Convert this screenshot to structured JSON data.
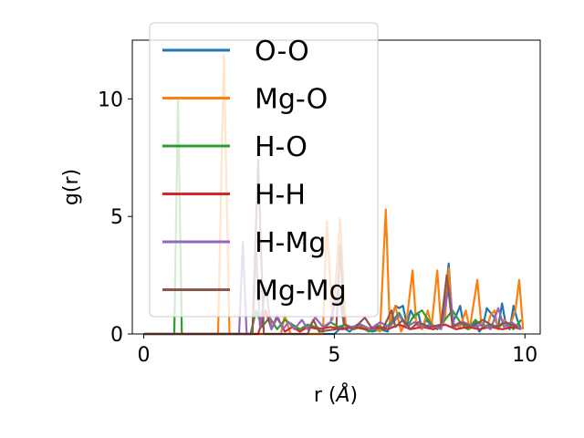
{
  "chart_data": {
    "type": "line",
    "xlabel": "r (",
    "xlabel_unit": "Å",
    "xlabel_close": ")",
    "ylabel": "g(r)",
    "xlim": [
      -0.3,
      10.4
    ],
    "ylim": [
      0,
      12.5
    ],
    "x_ticks": [
      {
        "value": 0,
        "label": "0"
      },
      {
        "value": 5,
        "label": "5"
      },
      {
        "value": 10,
        "label": "10"
      }
    ],
    "y_ticks": [
      {
        "value": 0,
        "label": "0"
      },
      {
        "value": 5,
        "label": "5"
      },
      {
        "value": 10,
        "label": "10"
      }
    ],
    "grid": false,
    "legend_position": "upper-left",
    "series": [
      {
        "name": "O-O",
        "color": "#1f77b4",
        "points": [
          [
            0,
            0
          ],
          [
            5.0,
            0
          ],
          [
            5.2,
            0.3
          ],
          [
            5.4,
            0.1
          ],
          [
            5.6,
            0.4
          ],
          [
            5.8,
            0.2
          ],
          [
            6.0,
            0.1
          ],
          [
            6.2,
            0.2
          ],
          [
            6.4,
            0.1
          ],
          [
            6.6,
            1.2
          ],
          [
            6.7,
            1.1
          ],
          [
            6.8,
            1.2
          ],
          [
            6.9,
            0.4
          ],
          [
            7.0,
            1.0
          ],
          [
            7.1,
            0.7
          ],
          [
            7.2,
            0.9
          ],
          [
            7.3,
            0.2
          ],
          [
            7.4,
            0.6
          ],
          [
            7.6,
            0.3
          ],
          [
            7.8,
            0.4
          ],
          [
            7.9,
            1.4
          ],
          [
            8.0,
            3.0
          ],
          [
            8.1,
            0.5
          ],
          [
            8.2,
            0.8
          ],
          [
            8.3,
            1.2
          ],
          [
            8.4,
            0.3
          ],
          [
            8.5,
            0.2
          ],
          [
            8.6,
            0.3
          ],
          [
            8.7,
            0.5
          ],
          [
            8.8,
            0.1
          ],
          [
            8.9,
            0.3
          ],
          [
            9.0,
            1.1
          ],
          [
            9.1,
            0.9
          ],
          [
            9.2,
            0.7
          ],
          [
            9.3,
            0.3
          ],
          [
            9.4,
            1.3
          ],
          [
            9.5,
            0.4
          ],
          [
            9.6,
            0.2
          ],
          [
            9.7,
            1.2
          ],
          [
            9.8,
            0.6
          ],
          [
            9.9,
            0.2
          ]
        ]
      },
      {
        "name": "Mg-O",
        "color": "#ff7f0e",
        "points": [
          [
            0,
            0
          ],
          [
            1.95,
            0
          ],
          [
            2.1,
            11.9
          ],
          [
            2.25,
            0
          ],
          [
            3.6,
            0
          ],
          [
            3.7,
            0.8
          ],
          [
            3.85,
            0
          ],
          [
            4.7,
            0
          ],
          [
            4.8,
            4.8
          ],
          [
            4.95,
            0.6
          ],
          [
            5.05,
            2.5
          ],
          [
            5.15,
            4.9
          ],
          [
            5.3,
            0.3
          ],
          [
            5.5,
            0.2
          ],
          [
            5.7,
            0.4
          ],
          [
            5.9,
            0.2
          ],
          [
            6.0,
            0.3
          ],
          [
            6.2,
            0.1
          ],
          [
            6.35,
            5.3
          ],
          [
            6.45,
            0.5
          ],
          [
            6.6,
            1.2
          ],
          [
            6.75,
            0.1
          ],
          [
            6.9,
            0.6
          ],
          [
            7.05,
            2.7
          ],
          [
            7.15,
            0.4
          ],
          [
            7.3,
            0.2
          ],
          [
            7.45,
            1.0
          ],
          [
            7.55,
            0.3
          ],
          [
            7.7,
            2.7
          ],
          [
            7.8,
            0.3
          ],
          [
            7.9,
            0.6
          ],
          [
            8.0,
            2.8
          ],
          [
            8.1,
            0.4
          ],
          [
            8.3,
            0.3
          ],
          [
            8.45,
            1.0
          ],
          [
            8.55,
            0.2
          ],
          [
            8.75,
            2.3
          ],
          [
            8.85,
            0.5
          ],
          [
            9.0,
            0.3
          ],
          [
            9.1,
            0.8
          ],
          [
            9.2,
            1.0
          ],
          [
            9.3,
            0.2
          ],
          [
            9.45,
            0.6
          ],
          [
            9.6,
            0.3
          ],
          [
            9.75,
            1.0
          ],
          [
            9.85,
            2.3
          ],
          [
            9.95,
            0.2
          ]
        ]
      },
      {
        "name": "H-O",
        "color": "#2ca02c",
        "points": [
          [
            0,
            0
          ],
          [
            0.8,
            0
          ],
          [
            0.9,
            10.0
          ],
          [
            1.0,
            0
          ],
          [
            2.8,
            0
          ],
          [
            2.95,
            1.0
          ],
          [
            3.1,
            0.3
          ],
          [
            3.3,
            0.7
          ],
          [
            3.5,
            0.2
          ],
          [
            3.7,
            0.6
          ],
          [
            3.9,
            0.4
          ],
          [
            4.1,
            0.2
          ],
          [
            4.3,
            0.4
          ],
          [
            4.5,
            0.3
          ],
          [
            4.7,
            0.2
          ],
          [
            4.9,
            0.5
          ],
          [
            5.1,
            0.3
          ],
          [
            5.3,
            0.4
          ],
          [
            5.5,
            0.2
          ],
          [
            5.7,
            0.3
          ],
          [
            5.9,
            0.1
          ],
          [
            6.1,
            0.4
          ],
          [
            6.3,
            0.2
          ],
          [
            6.5,
            0.5
          ],
          [
            6.7,
            0.9
          ],
          [
            6.9,
            0.3
          ],
          [
            7.1,
            0.8
          ],
          [
            7.3,
            1.0
          ],
          [
            7.5,
            0.5
          ],
          [
            7.7,
            0.2
          ],
          [
            7.9,
            0.6
          ],
          [
            8.1,
            1.0
          ],
          [
            8.3,
            0.5
          ],
          [
            8.5,
            0.2
          ],
          [
            8.7,
            0.6
          ],
          [
            8.9,
            0.3
          ],
          [
            9.1,
            0.4
          ],
          [
            9.3,
            0.3
          ],
          [
            9.5,
            0.5
          ],
          [
            9.7,
            0.2
          ],
          [
            9.9,
            0.6
          ]
        ]
      },
      {
        "name": "H-H",
        "color": "#d62728",
        "points": [
          [
            0,
            0
          ],
          [
            3.0,
            0
          ],
          [
            3.2,
            1.0
          ],
          [
            3.35,
            0.2
          ],
          [
            3.5,
            0.7
          ],
          [
            3.7,
            0.1
          ],
          [
            3.9,
            0.3
          ],
          [
            4.1,
            0.1
          ],
          [
            4.3,
            0.3
          ],
          [
            4.6,
            0.2
          ],
          [
            4.9,
            0.3
          ],
          [
            5.2,
            0.2
          ],
          [
            5.5,
            0.3
          ],
          [
            5.8,
            0.2
          ],
          [
            6.1,
            0.3
          ],
          [
            6.4,
            0.2
          ],
          [
            6.7,
            0.4
          ],
          [
            7.0,
            0.2
          ],
          [
            7.3,
            0.3
          ],
          [
            7.6,
            0.2
          ],
          [
            7.9,
            0.4
          ],
          [
            8.2,
            0.2
          ],
          [
            8.5,
            0.3
          ],
          [
            8.8,
            0.2
          ],
          [
            9.1,
            0.3
          ],
          [
            9.4,
            0.2
          ],
          [
            9.7,
            0.3
          ],
          [
            9.9,
            0.2
          ]
        ]
      },
      {
        "name": "H-Mg",
        "color": "#9467bd",
        "points": [
          [
            0,
            0
          ],
          [
            2.5,
            0
          ],
          [
            2.6,
            3.9
          ],
          [
            2.7,
            0
          ],
          [
            2.85,
            0
          ],
          [
            2.95,
            3.5
          ],
          [
            3.05,
            0.3
          ],
          [
            3.2,
            2.0
          ],
          [
            3.35,
            0.2
          ],
          [
            3.5,
            0.8
          ],
          [
            3.65,
            0.2
          ],
          [
            3.8,
            0.5
          ],
          [
            3.95,
            0.2
          ],
          [
            4.15,
            0.6
          ],
          [
            4.3,
            0.2
          ],
          [
            4.5,
            0.7
          ],
          [
            4.7,
            0.3
          ],
          [
            4.9,
            0.5
          ],
          [
            5.1,
            1.9
          ],
          [
            5.25,
            0.4
          ],
          [
            5.45,
            0.3
          ],
          [
            5.7,
            0.4
          ],
          [
            5.95,
            0.2
          ],
          [
            6.2,
            0.5
          ],
          [
            6.45,
            0.3
          ],
          [
            6.7,
            0.8
          ],
          [
            6.9,
            0.3
          ],
          [
            7.1,
            0.5
          ],
          [
            7.3,
            0.3
          ],
          [
            7.55,
            0.4
          ],
          [
            7.8,
            0.2
          ],
          [
            8.0,
            2.0
          ],
          [
            8.15,
            0.3
          ],
          [
            8.4,
            0.5
          ],
          [
            8.65,
            0.3
          ],
          [
            8.9,
            0.4
          ],
          [
            9.1,
            0.2
          ],
          [
            9.3,
            1.1
          ],
          [
            9.45,
            0.3
          ],
          [
            9.65,
            0.5
          ],
          [
            9.9,
            0.2
          ]
        ]
      },
      {
        "name": "Mg-Mg",
        "color": "#8c564b",
        "points": [
          [
            0,
            0
          ],
          [
            2.85,
            0
          ],
          [
            3.0,
            7.4
          ],
          [
            3.15,
            0
          ],
          [
            4.3,
            0
          ],
          [
            4.45,
            0.6
          ],
          [
            4.6,
            0.1
          ],
          [
            5.05,
            0.2
          ],
          [
            5.15,
            3.8
          ],
          [
            5.25,
            0.4
          ],
          [
            5.5,
            0.2
          ],
          [
            5.8,
            0.7
          ],
          [
            6.0,
            0.2
          ],
          [
            6.3,
            0.3
          ],
          [
            6.5,
            1.0
          ],
          [
            6.6,
            0.3
          ],
          [
            6.8,
            0.6
          ],
          [
            7.0,
            0.2
          ],
          [
            7.2,
            0.5
          ],
          [
            7.5,
            0.3
          ],
          [
            7.8,
            0.4
          ],
          [
            7.95,
            2.5
          ],
          [
            8.1,
            0.3
          ],
          [
            8.3,
            0.5
          ],
          [
            8.6,
            0.3
          ],
          [
            8.9,
            0.6
          ],
          [
            9.2,
            0.3
          ],
          [
            9.5,
            0.5
          ],
          [
            9.8,
            0.3
          ]
        ]
      }
    ]
  }
}
